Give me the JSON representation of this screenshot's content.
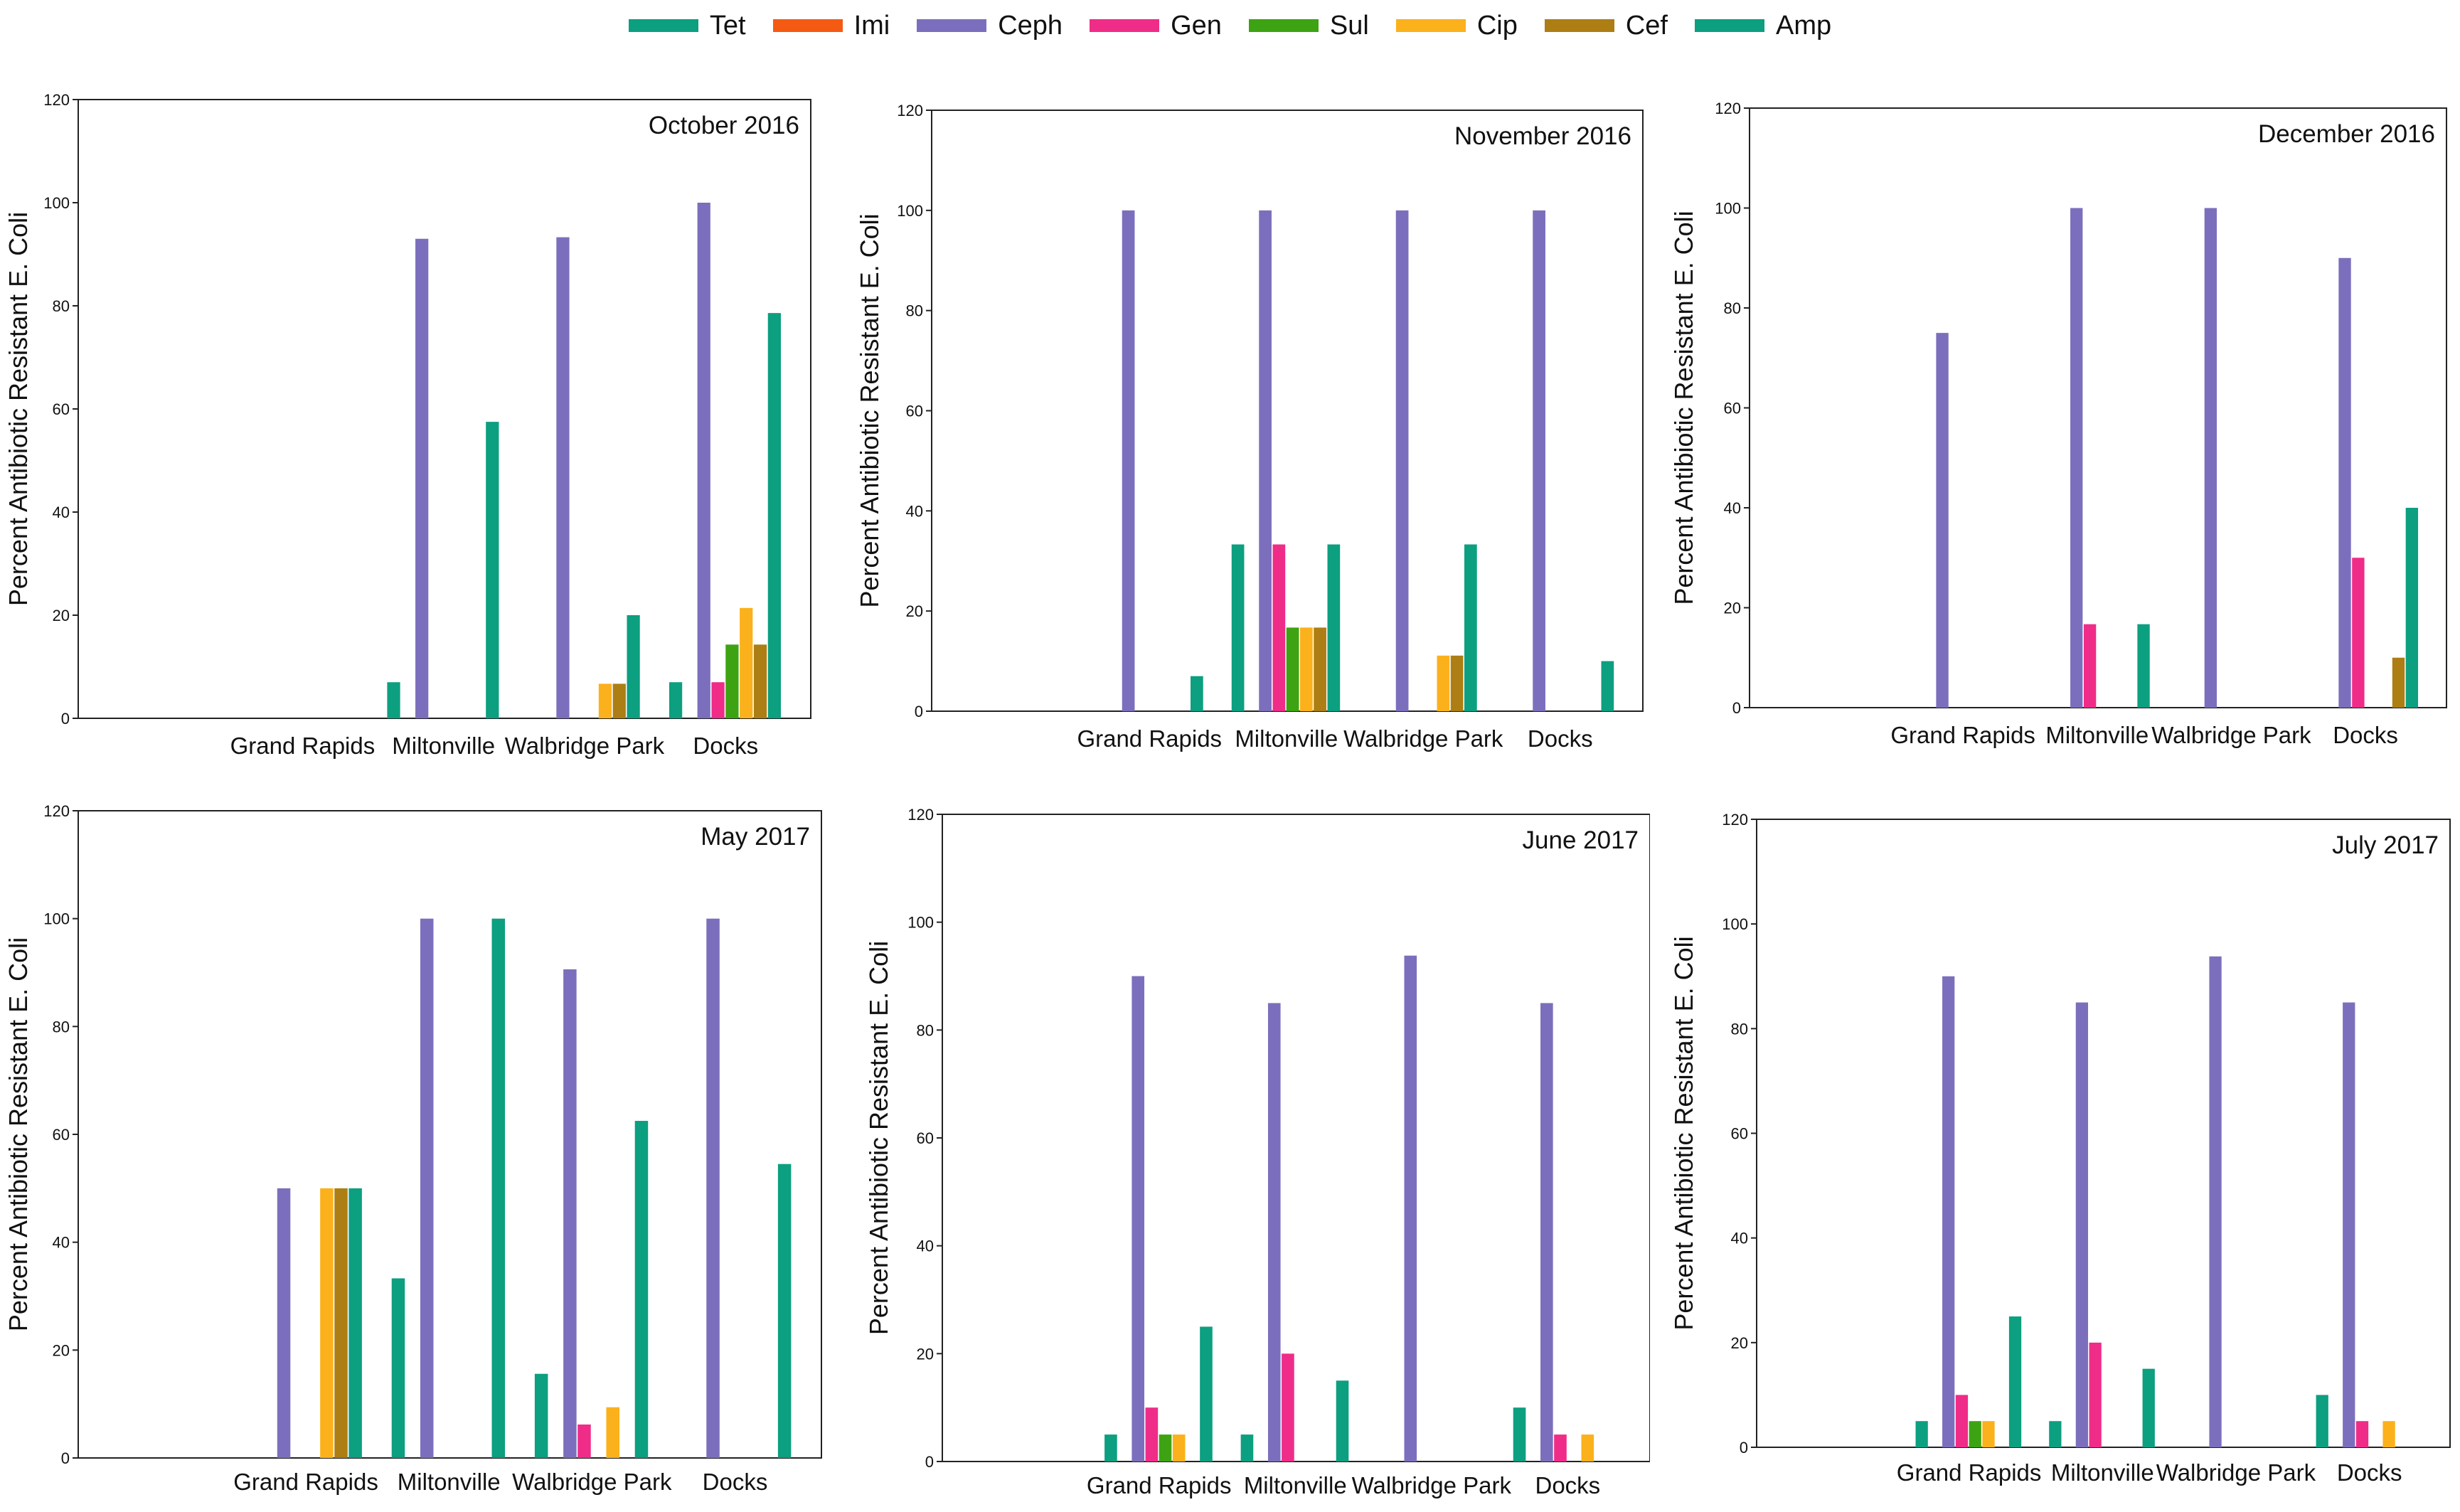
{
  "legend": [
    {
      "name": "Tet",
      "color": "#0c9f80"
    },
    {
      "name": "Imi",
      "color": "#f55a13"
    },
    {
      "name": "Ceph",
      "color": "#7b6fbd"
    },
    {
      "name": "Gen",
      "color": "#ef2c88"
    },
    {
      "name": "Sul",
      "color": "#3da313"
    },
    {
      "name": "Cip",
      "color": "#fbb11b"
    },
    {
      "name": "Cef",
      "color": "#ad7e14"
    },
    {
      "name": "Amp",
      "color": "#0c9f80"
    }
  ],
  "chart_data": [
    {
      "type": "bar",
      "title": "October 2016",
      "ylabel": "Percent Antibiotic Resistant E. Coli",
      "ylim": [
        0,
        120
      ],
      "yticks": [
        "0",
        "20",
        "40",
        "60",
        "80",
        "100",
        "120"
      ],
      "categories": [
        "Grand Rapids",
        "Miltonville",
        "Walbridge Park",
        "Docks"
      ],
      "series": [
        {
          "name": "Tet",
          "values": [
            0,
            7,
            0,
            7
          ]
        },
        {
          "name": "Imi",
          "values": [
            0,
            0,
            0,
            0
          ]
        },
        {
          "name": "Ceph",
          "values": [
            0,
            93,
            93.3,
            100
          ]
        },
        {
          "name": "Gen",
          "values": [
            0,
            0,
            0,
            7
          ]
        },
        {
          "name": "Sul",
          "values": [
            0,
            0,
            0,
            14.3
          ]
        },
        {
          "name": "Cip",
          "values": [
            0,
            0,
            6.7,
            21.4
          ]
        },
        {
          "name": "Cef",
          "values": [
            0,
            0,
            6.7,
            14.3
          ]
        },
        {
          "name": "Amp",
          "values": [
            0,
            57.5,
            20,
            78.6
          ]
        }
      ]
    },
    {
      "type": "bar",
      "title": "November 2016",
      "ylabel": "Percent Antibiotic Resistant E. Coli",
      "ylim": [
        0,
        120
      ],
      "yticks": [
        "0",
        "20",
        "40",
        "60",
        "80",
        "100",
        "120"
      ],
      "categories": [
        "Grand Rapids",
        "Miltonville",
        "Walbridge Park",
        "Docks"
      ],
      "series": [
        {
          "name": "Tet",
          "values": [
            0,
            33.3,
            0,
            0
          ]
        },
        {
          "name": "Imi",
          "values": [
            0,
            0,
            0,
            0
          ]
        },
        {
          "name": "Ceph",
          "values": [
            100,
            100,
            100,
            100
          ]
        },
        {
          "name": "Gen",
          "values": [
            0,
            33.3,
            0,
            0
          ]
        },
        {
          "name": "Sul",
          "values": [
            0,
            16.7,
            0,
            0
          ]
        },
        {
          "name": "Cip",
          "values": [
            0,
            16.7,
            11.1,
            0
          ]
        },
        {
          "name": "Cef",
          "values": [
            0,
            16.7,
            11.1,
            0
          ]
        },
        {
          "name": "Amp",
          "values": [
            7,
            33.3,
            33.3,
            10
          ]
        }
      ]
    },
    {
      "type": "bar",
      "title": "December 2016",
      "ylabel": "Percent Antibiotic Resistant E. Coli",
      "ylim": [
        0,
        120
      ],
      "yticks": [
        "0",
        "20",
        "40",
        "60",
        "80",
        "100",
        "120"
      ],
      "categories": [
        "Grand Rapids",
        "Miltonville",
        "Walbridge Park",
        "Docks"
      ],
      "series": [
        {
          "name": "Tet",
          "values": [
            0,
            0,
            0,
            0
          ]
        },
        {
          "name": "Imi",
          "values": [
            0,
            0,
            0,
            0
          ]
        },
        {
          "name": "Ceph",
          "values": [
            75,
            100,
            100,
            90
          ]
        },
        {
          "name": "Gen",
          "values": [
            0,
            16.7,
            0,
            30
          ]
        },
        {
          "name": "Sul",
          "values": [
            0,
            0,
            0,
            0
          ]
        },
        {
          "name": "Cip",
          "values": [
            0,
            0,
            0,
            0
          ]
        },
        {
          "name": "Cef",
          "values": [
            0,
            0,
            0,
            10
          ]
        },
        {
          "name": "Amp",
          "values": [
            0,
            16.7,
            0,
            40
          ]
        }
      ]
    },
    {
      "type": "bar",
      "title": "May 2017",
      "ylabel": "Percent Antibiotic Resistant E. Coli",
      "ylim": [
        0,
        120
      ],
      "yticks": [
        "0",
        "20",
        "40",
        "60",
        "80",
        "100",
        "120"
      ],
      "categories": [
        "Grand Rapids",
        "Miltonville",
        "Walbridge Park",
        "Docks"
      ],
      "series": [
        {
          "name": "Tet",
          "values": [
            0,
            33.3,
            15.6,
            0
          ]
        },
        {
          "name": "Imi",
          "values": [
            0,
            0,
            0,
            0
          ]
        },
        {
          "name": "Ceph",
          "values": [
            50,
            100,
            90.6,
            100
          ]
        },
        {
          "name": "Gen",
          "values": [
            0,
            0,
            6.2,
            0
          ]
        },
        {
          "name": "Sul",
          "values": [
            0,
            0,
            0,
            0
          ]
        },
        {
          "name": "Cip",
          "values": [
            50,
            0,
            9.4,
            0
          ]
        },
        {
          "name": "Cef",
          "values": [
            50,
            0,
            0,
            0
          ]
        },
        {
          "name": "Amp",
          "values": [
            50,
            100,
            62.5,
            54.5
          ]
        }
      ]
    },
    {
      "type": "bar",
      "title": "June 2017",
      "ylabel": "Percent Antibiotic Resistant E. Coli",
      "ylim": [
        0,
        120
      ],
      "yticks": [
        "0",
        "20",
        "40",
        "60",
        "80",
        "100",
        "120"
      ],
      "categories": [
        "Grand Rapids",
        "Miltonville",
        "Walbridge Park",
        "Docks"
      ],
      "series": [
        {
          "name": "Tet",
          "values": [
            5,
            5,
            0,
            10
          ]
        },
        {
          "name": "Imi",
          "values": [
            0,
            0,
            0,
            0
          ]
        },
        {
          "name": "Ceph",
          "values": [
            90,
            85,
            93.8,
            85
          ]
        },
        {
          "name": "Gen",
          "values": [
            10,
            20,
            0,
            5
          ]
        },
        {
          "name": "Sul",
          "values": [
            5,
            0,
            0,
            0
          ]
        },
        {
          "name": "Cip",
          "values": [
            5,
            0,
            0,
            5
          ]
        },
        {
          "name": "Cef",
          "values": [
            0,
            0,
            0,
            0
          ]
        },
        {
          "name": "Amp",
          "values": [
            25,
            15,
            0,
            0
          ]
        }
      ]
    },
    {
      "type": "bar",
      "title": "July 2017",
      "ylabel": "Percent Antibiotic Resistant E. Coli",
      "ylim": [
        0,
        120
      ],
      "yticks": [
        "0",
        "20",
        "40",
        "60",
        "80",
        "100",
        "120"
      ],
      "categories": [
        "Grand Rapids",
        "Miltonville",
        "Walbridge Park",
        "Docks"
      ],
      "series": [
        {
          "name": "Tet",
          "values": [
            5,
            5,
            0,
            10
          ]
        },
        {
          "name": "Imi",
          "values": [
            0,
            0,
            0,
            0
          ]
        },
        {
          "name": "Ceph",
          "values": [
            90,
            85,
            93.8,
            85
          ]
        },
        {
          "name": "Gen",
          "values": [
            10,
            20,
            0,
            5
          ]
        },
        {
          "name": "Sul",
          "values": [
            5,
            0,
            0,
            0
          ]
        },
        {
          "name": "Cip",
          "values": [
            5,
            0,
            0,
            5
          ]
        },
        {
          "name": "Cef",
          "values": [
            0,
            0,
            0,
            0
          ]
        },
        {
          "name": "Amp",
          "values": [
            25,
            15,
            0,
            0
          ]
        }
      ]
    }
  ]
}
